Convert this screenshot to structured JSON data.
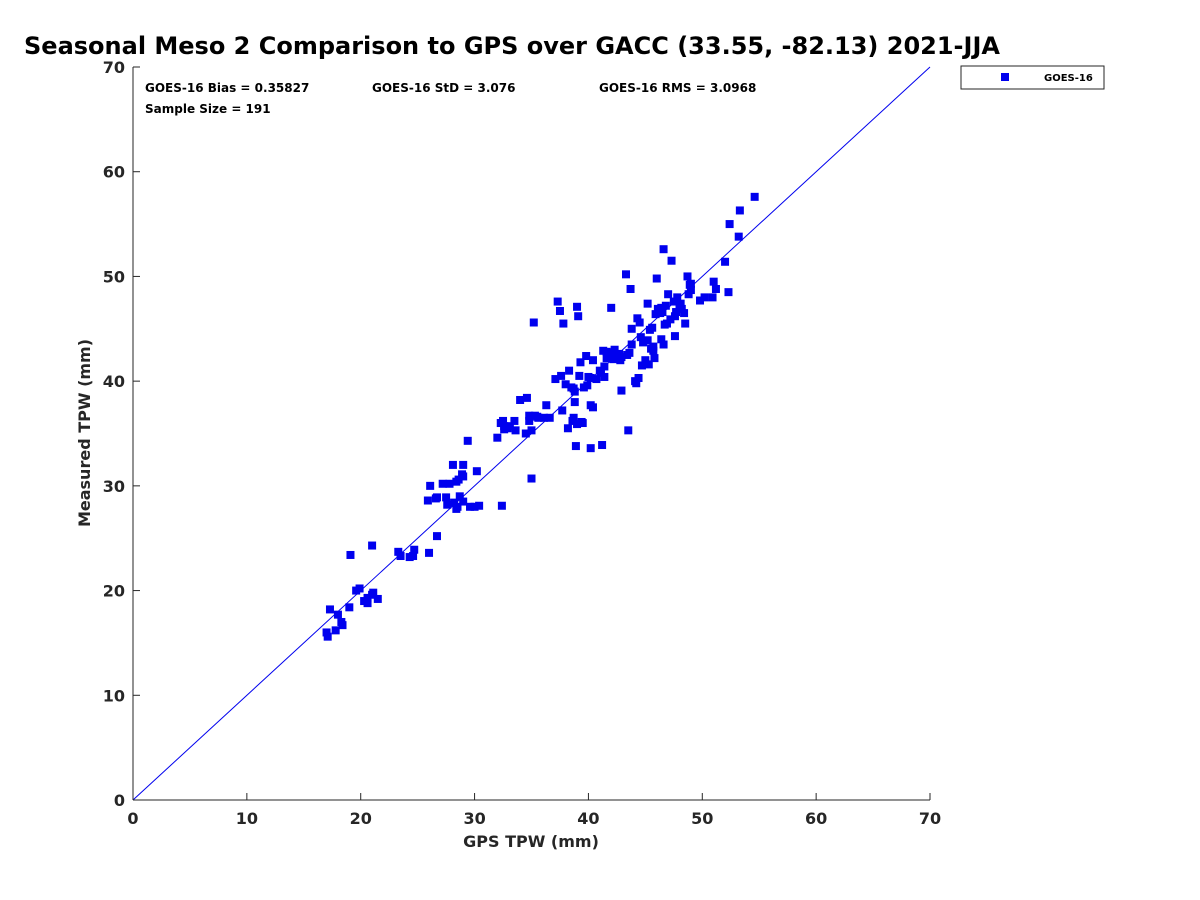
{
  "colors": {
    "series": "#0000ee",
    "axis": "#262626",
    "line": "#0000ee"
  },
  "stats": {
    "bias": "GOES-16 Bias = 0.35827",
    "std": "GOES-16 StD = 3.076",
    "rms": "GOES-16 RMS = 3.0968",
    "sample": "Sample Size = 191"
  },
  "chart_data": {
    "type": "scatter",
    "title": "Seasonal Meso 2 Comparison to GPS over GACC (33.55, -82.13) 2021-JJA",
    "xlabel": "GPS TPW (mm)",
    "ylabel": "Measured TPW (mm)",
    "xlim": [
      0,
      70
    ],
    "ylim": [
      0,
      70
    ],
    "xticks": [
      0,
      10,
      20,
      30,
      40,
      50,
      60,
      70
    ],
    "yticks": [
      0,
      10,
      20,
      30,
      40,
      50,
      60,
      70
    ],
    "reference_line": {
      "from": [
        0,
        0
      ],
      "to": [
        70,
        70
      ]
    },
    "legend": {
      "position": "top-right, outside plot",
      "entries": [
        "GOES-16"
      ]
    },
    "series": [
      {
        "name": "GOES-16",
        "marker": "square",
        "x": [
          17.0,
          17.1,
          17.3,
          17.8,
          18.0,
          18.3,
          18.4,
          19.0,
          19.1,
          19.6,
          19.9,
          20.6,
          20.6,
          21.0,
          21.1,
          21.5,
          23.3,
          24.3,
          24.6,
          24.7,
          26.0,
          26.1,
          26.7,
          26.7,
          27.6,
          27.8,
          28.1,
          28.2,
          28.4,
          28.4,
          28.6,
          28.9,
          29.0,
          29.0,
          29.4,
          29.6,
          30.0,
          30.2,
          32.0,
          32.4,
          32.5,
          32.6,
          32.9,
          33.5,
          33.6,
          34.0,
          34.6,
          34.8,
          34.8,
          35.0,
          35.2,
          35.6,
          36.1,
          37.1,
          37.3,
          37.5,
          37.8,
          38.0,
          38.2,
          38.3,
          38.6,
          38.7,
          38.8,
          38.8,
          39.0,
          39.0,
          39.1,
          39.2,
          39.5,
          39.6,
          39.8,
          40.0,
          40.2,
          40.2,
          40.4,
          40.7,
          41.2,
          41.4,
          41.4,
          41.6,
          41.6,
          42.0,
          42.2,
          42.4,
          42.8,
          42.9,
          43.4,
          43.5,
          43.7,
          43.8,
          44.2,
          44.4,
          44.5,
          44.7,
          45.0,
          45.2,
          45.4,
          45.5,
          45.6,
          45.7,
          45.8,
          46.0,
          46.1,
          46.3,
          46.5,
          46.6,
          46.8,
          46.9,
          47.0,
          47.3,
          47.5,
          47.6,
          47.8,
          48.0,
          48.2,
          48.4,
          48.5,
          48.7,
          48.8,
          49.0,
          49.8,
          50.2,
          50.9,
          51.0,
          51.2,
          52.0,
          52.3,
          52.4,
          53.2,
          53.3,
          54.6,
          38.7,
          37.7,
          41.1,
          40.4,
          39.4,
          43.6,
          45.3,
          46.7,
          35.0,
          35.3,
          27.5,
          26.6,
          28.5,
          23.5,
          21.0,
          20.3,
          32.6,
          25.9,
          46.6,
          47.2,
          44.8,
          40.2,
          42.7,
          43.3,
          42.1,
          41.7,
          44.1,
          45.7,
          46.4,
          47.6,
          48.1,
          49.0,
          38.9,
          39.3,
          45.9,
          43.8,
          36.6,
          34.5,
          32.3,
          30.4,
          28.7,
          27.2,
          39.9,
          41.0,
          42.9,
          44.6,
          48.9,
          46.4,
          45.2,
          47.7,
          29.0,
          42.3,
          44.3,
          35.5,
          41.3,
          37.6,
          36.3,
          33.1,
          38.5
        ],
        "y": [
          16.0,
          15.6,
          18.2,
          16.2,
          17.7,
          17.0,
          16.7,
          18.4,
          23.4,
          20.0,
          20.2,
          18.8,
          19.3,
          24.3,
          19.8,
          19.2,
          23.7,
          23.2,
          23.3,
          23.9,
          23.6,
          30.0,
          25.2,
          28.9,
          28.2,
          30.2,
          32.0,
          28.4,
          30.4,
          27.8,
          30.6,
          31.1,
          32.0,
          28.5,
          34.3,
          28.0,
          28.0,
          31.4,
          34.6,
          28.1,
          36.2,
          35.7,
          35.5,
          36.2,
          35.3,
          38.2,
          38.4,
          36.7,
          36.2,
          35.3,
          45.6,
          36.5,
          36.5,
          40.2,
          47.6,
          46.7,
          45.5,
          39.7,
          35.5,
          41.0,
          36.2,
          36.5,
          38.0,
          39.0,
          47.1,
          35.9,
          46.2,
          40.5,
          36.0,
          39.4,
          42.4,
          40.4,
          40.3,
          37.7,
          37.5,
          40.2,
          33.9,
          41.4,
          40.4,
          42.2,
          42.8,
          47.0,
          42.1,
          42.3,
          42.0,
          39.1,
          42.5,
          35.3,
          48.8,
          45.0,
          39.8,
          40.3,
          45.6,
          41.5,
          42.0,
          47.4,
          44.9,
          43.1,
          45.1,
          42.9,
          42.2,
          49.8,
          46.9,
          46.5,
          46.6,
          52.6,
          47.2,
          45.5,
          48.3,
          51.5,
          47.6,
          44.3,
          48.0,
          47.2,
          46.9,
          46.5,
          45.5,
          50.0,
          48.3,
          49.3,
          47.7,
          48.0,
          48.0,
          49.5,
          48.8,
          51.4,
          48.5,
          55.0,
          53.8,
          56.3,
          57.6,
          39.3,
          37.2,
          40.8,
          42.0,
          36.1,
          42.7,
          41.6,
          45.4,
          30.7,
          36.7,
          28.9,
          28.8,
          28.0,
          23.3,
          19.6,
          19.0,
          35.4,
          28.6,
          43.5,
          45.9,
          43.7,
          33.6,
          42.6,
          50.2,
          42.5,
          42.7,
          40.0,
          43.3,
          47.0,
          46.2,
          47.4,
          48.7,
          33.8,
          41.8,
          46.4,
          43.5,
          36.5,
          35.0,
          36.0,
          28.1,
          29.0,
          30.2,
          39.6,
          41.0,
          42.3,
          44.2,
          49.2,
          44.0,
          43.9,
          46.6,
          30.9,
          43.0,
          46.0,
          36.6,
          42.9,
          40.5,
          37.7,
          35.7,
          39.4
        ]
      }
    ]
  }
}
